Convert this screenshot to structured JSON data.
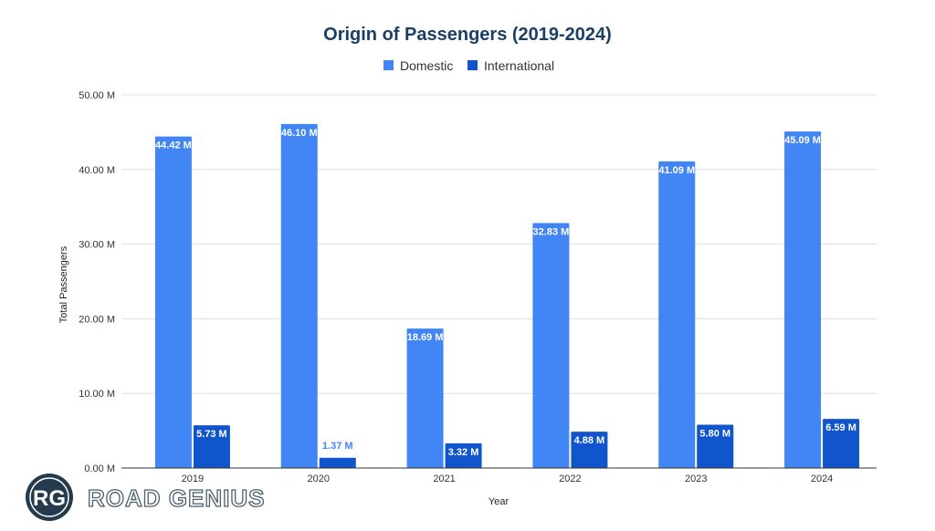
{
  "chart_data": {
    "type": "bar",
    "title": "Origin of Passengers (2019-2024)",
    "xlabel": "Year",
    "ylabel": "Total Passengers",
    "categories": [
      "2019",
      "2020",
      "2021",
      "2022",
      "2023",
      "2024"
    ],
    "series": [
      {
        "name": "Domestic",
        "color": "#4285f4",
        "values": [
          44.42,
          46.1,
          18.69,
          32.83,
          41.09,
          45.09
        ],
        "labels": [
          "44.42 M",
          "46.10 M",
          "18.69 M",
          "32.83 M",
          "41.09 M",
          "45.09 M"
        ]
      },
      {
        "name": "International",
        "color": "#1155cc",
        "values": [
          5.73,
          1.37,
          3.32,
          4.88,
          5.8,
          6.59
        ],
        "labels": [
          "5.73 M",
          "1.37 M",
          "3.32 M",
          "4.88 M",
          "5.80 M",
          "6.59 M"
        ]
      }
    ],
    "ylim": [
      0,
      50
    ],
    "yticks": [
      0,
      10,
      20,
      30,
      40,
      50
    ],
    "ytick_labels": [
      "0.00 M",
      "10.00 M",
      "20.00 M",
      "30.00 M",
      "40.00 M",
      "50.00 M"
    ],
    "grid": true,
    "legend_position": "top-center"
  },
  "branding": {
    "logo_initials": "RG",
    "logo_text": "ROAD GENIUS"
  }
}
